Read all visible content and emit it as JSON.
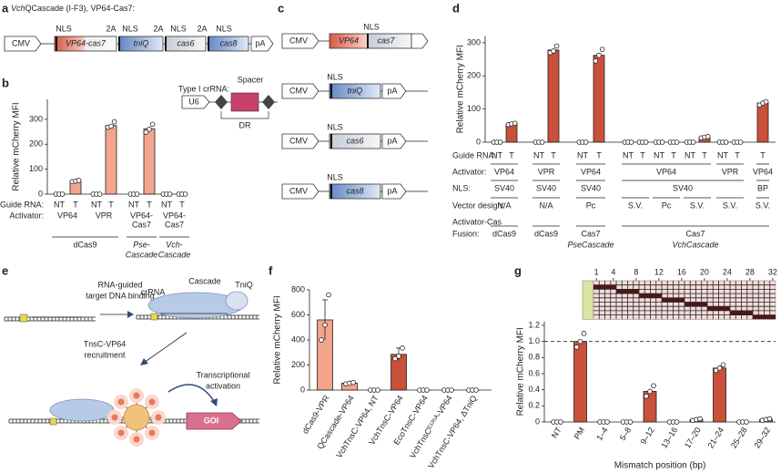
{
  "figure": {
    "a": {
      "label": "a",
      "title_italic": "Vch",
      "title_rest": "QCascade (I-F3), VP64-Cas7:",
      "parts": [
        "CMV",
        "VP64-cas7",
        "tniQ",
        "cas6",
        "cas8",
        "pA"
      ],
      "tags": [
        "NLS",
        "2A",
        "NLS",
        "2A",
        "NLS",
        "2A",
        "NLS"
      ]
    },
    "b_inset": {
      "title": "Type I crRNA:",
      "spacer": "Spacer",
      "promoter": "U6",
      "repeat": "DR"
    },
    "c": {
      "label": "c",
      "constructs": [
        {
          "promoter": "CMV",
          "genes": [
            "VP64",
            "cas7"
          ],
          "tag": "NLS"
        },
        {
          "promoter": "CMV",
          "genes": [
            "tniQ"
          ],
          "tag": "NLS",
          "end": "pA"
        },
        {
          "promoter": "CMV",
          "genes": [
            "cas6"
          ],
          "tag": "NLS",
          "end": "pA"
        },
        {
          "promoter": "CMV",
          "genes": [
            "cas8"
          ],
          "tag": "NLS",
          "end": "pA"
        }
      ]
    },
    "e": {
      "label": "e",
      "binding": [
        "RNA-guided",
        "target DNA binding"
      ],
      "cascade": "Cascade",
      "crrna": "crRNA",
      "tniq": "TniQ",
      "recruit": [
        "TnsC-VP64",
        "recruitment"
      ],
      "activation": [
        "Transcriptional",
        "activation"
      ],
      "goi": "GOI"
    }
  },
  "chart_data": [
    {
      "panel": "b",
      "type": "bar",
      "ylabel": "Relative mCherry MFI",
      "ylim": [
        0,
        380
      ],
      "yticks": [
        0,
        100,
        200,
        300
      ],
      "color": "#f3a48d",
      "categories": [
        "NT",
        "T",
        "NT",
        "T",
        "NT",
        "T",
        "NT",
        "T"
      ],
      "values": [
        0,
        52,
        0,
        275,
        0,
        262,
        0,
        0
      ],
      "points": [
        [
          0,
          0,
          0
        ],
        [
          50,
          52,
          55
        ],
        [
          0,
          0,
          0
        ],
        [
          268,
          272,
          290
        ],
        [
          0,
          0,
          0
        ],
        [
          248,
          260,
          280
        ],
        [
          0,
          0,
          0
        ],
        [
          0,
          0,
          0
        ]
      ],
      "row_labels": [
        "Guide RNA:",
        "Activator:"
      ],
      "activators": [
        [
          "VP64"
        ],
        [
          "VPR"
        ],
        [
          "VP64-",
          "Cas7"
        ],
        [
          "VP64-",
          "Cas7"
        ]
      ],
      "groups": [
        [
          "dCas9"
        ],
        [
          "Pse-",
          "Cascade"
        ],
        [
          "Vch-",
          "Cascade"
        ]
      ]
    },
    {
      "panel": "d",
      "type": "bar",
      "ylabel": "Relative mCherry MFI",
      "ylim": [
        0,
        320
      ],
      "yticks": [
        0,
        100,
        200,
        300
      ],
      "color": "#c9503a",
      "categories": [
        "NT",
        "T",
        "NT",
        "T",
        "NT",
        "T",
        "NT",
        "T",
        "NT",
        "T",
        "NT",
        "T",
        "NT",
        "T",
        "T"
      ],
      "values": [
        0,
        55,
        0,
        278,
        0,
        262,
        0,
        0,
        0,
        0,
        0,
        15,
        0,
        0,
        118
      ],
      "points": [
        [
          0,
          0,
          0
        ],
        [
          53,
          55,
          57
        ],
        [
          0,
          0,
          0
        ],
        [
          270,
          275,
          290
        ],
        [
          0,
          0,
          0
        ],
        [
          245,
          262,
          280
        ],
        [
          0,
          0,
          0
        ],
        [
          0,
          0,
          0
        ],
        [
          0,
          0,
          0
        ],
        [
          0,
          0,
          0
        ],
        [
          0,
          0,
          0
        ],
        [
          13,
          15,
          17
        ],
        [
          0,
          0,
          0
        ],
        [
          0,
          0,
          0
        ],
        [
          112,
          118,
          122
        ]
      ],
      "guide_label": "Guide RNA:",
      "rows": [
        {
          "header": "Activator:",
          "cells": [
            "VP64",
            "VPR",
            "VP64",
            "VP64",
            "VPR",
            "VP64"
          ]
        },
        {
          "header": "NLS:",
          "cells": [
            "SV40",
            "SV40",
            "SV40",
            "SV40",
            "BP"
          ]
        },
        {
          "header": "Vector design:",
          "cells": [
            "N/A",
            "N/A",
            "Pc",
            "S.V.",
            "Pc",
            "S.V.",
            "S.V.",
            "S.V."
          ]
        }
      ],
      "fusion": {
        "header": [
          "Activator-Cas",
          "Fusion:"
        ],
        "cells": [
          [
            "dCas9"
          ],
          [
            "dCas9"
          ],
          [
            "Cas7",
            "PseCascade"
          ],
          [
            "Cas7",
            "VchCascade"
          ]
        ]
      }
    },
    {
      "panel": "f",
      "type": "bar",
      "ylabel": "Relative mCherry MFI",
      "ylim": [
        0,
        800
      ],
      "yticks": [
        0,
        200,
        400,
        600,
        800
      ],
      "colors": [
        "#f3a48d",
        "#f3a48d",
        "#c9503a",
        "#c9503a",
        "#c9503a",
        "#c9503a",
        "#c9503a"
      ],
      "categories": [
        "dCas9-VPR",
        "QCascade-VP64",
        "VchTnsC-VP64, NT",
        "VchTnsC-VP64",
        "EcoTnsC-VP64",
        "VchTnsCᴱ¹³⁵ᴬ-VP64",
        "VchTnsC-VP64, ΔTniQ"
      ],
      "values": [
        560,
        55,
        0,
        285,
        0,
        0,
        0
      ],
      "errors": [
        160,
        8,
        0,
        50,
        0,
        0,
        0
      ],
      "points": [
        [
          400,
          520,
          760
        ],
        [
          50,
          55,
          60
        ],
        [
          0,
          0,
          0
        ],
        [
          250,
          270,
          335
        ],
        [
          0,
          0,
          0
        ],
        [
          0,
          0,
          0
        ],
        [
          0,
          0,
          0
        ]
      ]
    },
    {
      "panel": "g",
      "type": "bar",
      "ylabel": "Relative mCherry MFI",
      "xlabel": "Mismatch position (bp)",
      "ylim": [
        0,
        1.25
      ],
      "yticks": [
        0,
        0.2,
        0.4,
        0.6,
        0.8,
        {
          "value": 1,
          "label": "1.0"
        },
        1.2
      ],
      "color": "#c9503a",
      "refline": 1,
      "categories": [
        "NT",
        "PM",
        "1–4",
        "5–8",
        "9–12",
        "13–16",
        "17–20",
        "21–24",
        "25–28",
        "29–32"
      ],
      "values": [
        0,
        1,
        0,
        0,
        0.38,
        0,
        0.03,
        0.67,
        0,
        0.03
      ],
      "points": [
        [
          0,
          0,
          0
        ],
        [
          0.93,
          1,
          1.1
        ],
        [
          0,
          0,
          0
        ],
        [
          0,
          0,
          0
        ],
        [
          0.32,
          0.38,
          0.45
        ],
        [
          0,
          0,
          0
        ],
        [
          0.02,
          0.03,
          0.04
        ],
        [
          0.64,
          0.67,
          0.71
        ],
        [
          0,
          0,
          0
        ],
        [
          0.02,
          0.03,
          0.04
        ]
      ],
      "heatmap_ticks": [
        1,
        4,
        8,
        12,
        16,
        20,
        24,
        28,
        32
      ]
    }
  ]
}
